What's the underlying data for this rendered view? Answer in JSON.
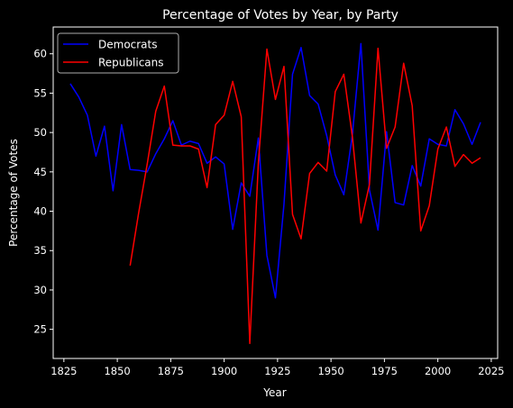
{
  "chart_data": {
    "type": "line",
    "title": "Percentage of Votes by Year, by Party",
    "xlabel": "Year",
    "ylabel": "Percentage of Votes",
    "xlim": [
      1820,
      2028
    ],
    "ylim": [
      21.3,
      63.4
    ],
    "xticks": [
      "1825",
      "1850",
      "1875",
      "1900",
      "1925",
      "1950",
      "1975",
      "2000",
      "2025"
    ],
    "yticks": [
      "25",
      "30",
      "35",
      "40",
      "45",
      "50",
      "55",
      "60"
    ],
    "grid": false,
    "legend": "top-left",
    "series": [
      {
        "name": "Democrats",
        "color": "#0000ff",
        "x": [
          1828,
          1832,
          1836,
          1840,
          1844,
          1848,
          1852,
          1856,
          1860,
          1864,
          1868,
          1872,
          1876,
          1880,
          1884,
          1888,
          1892,
          1896,
          1900,
          1904,
          1908,
          1912,
          1916,
          1920,
          1924,
          1928,
          1932,
          1936,
          1940,
          1944,
          1948,
          1952,
          1956,
          1960,
          1964,
          1968,
          1972,
          1976,
          1980,
          1984,
          1988,
          1992,
          1996,
          2000,
          2004,
          2008,
          2012,
          2016,
          2020
        ],
        "y": [
          56.2,
          54.5,
          52.2,
          47.0,
          50.8,
          42.6,
          51.0,
          45.3,
          45.2,
          45.0,
          47.3,
          49.2,
          51.5,
          48.4,
          48.9,
          48.6,
          46.1,
          46.9,
          46.0,
          37.7,
          43.6,
          41.9,
          49.3,
          34.4,
          29.0,
          40.9,
          57.4,
          60.8,
          54.7,
          53.6,
          49.6,
          44.6,
          42.1,
          49.7,
          61.3,
          42.7,
          37.6,
          50.1,
          41.1,
          40.8,
          45.8,
          43.2,
          49.2,
          48.5,
          48.3,
          52.9,
          51.1,
          48.5,
          51.3
        ]
      },
      {
        "name": "Republicans",
        "color": "#ff0000",
        "x": [
          1856,
          1860,
          1864,
          1868,
          1872,
          1876,
          1880,
          1884,
          1888,
          1892,
          1896,
          1900,
          1904,
          1908,
          1912,
          1916,
          1920,
          1924,
          1928,
          1932,
          1936,
          1940,
          1944,
          1948,
          1952,
          1956,
          1960,
          1964,
          1968,
          1972,
          1976,
          1980,
          1984,
          1988,
          1992,
          1996,
          2000,
          2004,
          2008,
          2012,
          2016,
          2020
        ],
        "y": [
          33.1,
          39.8,
          46.0,
          52.7,
          55.9,
          48.4,
          48.3,
          48.3,
          47.9,
          43.0,
          51.0,
          52.2,
          56.5,
          52.0,
          23.2,
          46.1,
          60.6,
          54.2,
          58.4,
          39.6,
          36.5,
          44.8,
          46.2,
          45.1,
          55.2,
          57.4,
          49.5,
          38.5,
          43.4,
          60.7,
          48.0,
          50.7,
          58.8,
          53.4,
          37.5,
          40.7,
          47.9,
          50.7,
          45.7,
          47.2,
          46.1,
          46.8
        ]
      }
    ]
  }
}
